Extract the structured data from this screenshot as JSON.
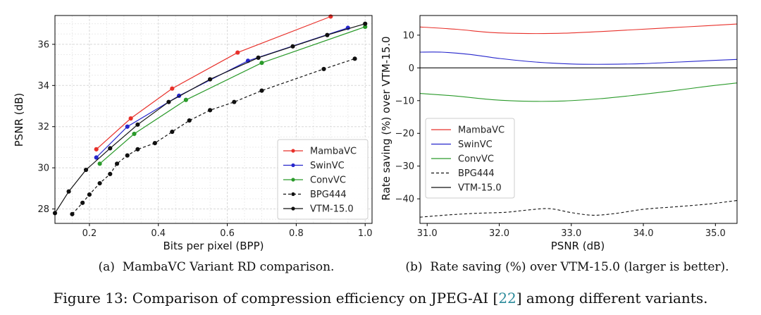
{
  "chart_data": [
    {
      "type": "line",
      "xlabel": "Bits per pixel (BPP)",
      "ylabel": "PSNR (dB)",
      "xlim": [
        0.1,
        1.02
      ],
      "ylim": [
        27.3,
        37.4
      ],
      "xticks": [
        0.2,
        0.4,
        0.6,
        0.8,
        1.0
      ],
      "xtick_labels": [
        "0.2",
        "0.4",
        "0.6",
        "0.8",
        "1.0"
      ],
      "yticks": [
        28,
        30,
        32,
        34,
        36
      ],
      "ytick_labels": [
        "28",
        "30",
        "32",
        "34",
        "36"
      ],
      "grid": true,
      "legend_position": "bottom-right",
      "caption": "(a)  MambaVC Variant RD comparison.",
      "series": [
        {
          "name": "MambaVC",
          "color": "#e8302a",
          "dash": "solid",
          "x": [
            0.22,
            0.32,
            0.44,
            0.63,
            0.9
          ],
          "y": [
            30.9,
            32.4,
            33.85,
            35.6,
            37.35
          ]
        },
        {
          "name": "SwinVC",
          "color": "#2626cc",
          "dash": "solid",
          "x": [
            0.22,
            0.31,
            0.46,
            0.66,
            0.95
          ],
          "y": [
            30.5,
            32.0,
            33.5,
            35.2,
            36.8
          ]
        },
        {
          "name": "ConvVC",
          "color": "#2a9a2a",
          "dash": "solid",
          "x": [
            0.23,
            0.33,
            0.48,
            0.7,
            1.0
          ],
          "y": [
            30.2,
            31.65,
            33.3,
            35.1,
            36.85
          ]
        },
        {
          "name": "BPG444",
          "color": "#111111",
          "dash": "dashed",
          "x": [
            0.15,
            0.18,
            0.2,
            0.23,
            0.26,
            0.28,
            0.31,
            0.34,
            0.39,
            0.44,
            0.49,
            0.55,
            0.62,
            0.7,
            0.88,
            0.97
          ],
          "y": [
            27.75,
            28.3,
            28.7,
            29.25,
            29.7,
            30.2,
            30.6,
            30.9,
            31.2,
            31.75,
            32.3,
            32.8,
            33.2,
            33.75,
            34.8,
            35.3
          ]
        },
        {
          "name": "VTM-15.0",
          "color": "#111111",
          "dash": "solid",
          "x": [
            0.1,
            0.14,
            0.19,
            0.26,
            0.34,
            0.43,
            0.55,
            0.69,
            0.79,
            0.89,
            1.0
          ],
          "y": [
            27.8,
            28.85,
            29.9,
            30.95,
            32.1,
            33.2,
            34.3,
            35.35,
            35.9,
            36.45,
            37.0
          ]
        }
      ]
    },
    {
      "type": "line",
      "xlabel": "PSNR (dB)",
      "ylabel": "Rate saving (%) over VTM-15.0",
      "xlim": [
        30.9,
        35.3
      ],
      "ylim": [
        -47.5,
        16
      ],
      "xticks": [
        31.0,
        32.0,
        33.0,
        34.0,
        35.0
      ],
      "xtick_labels": [
        "31.0",
        "32.0",
        "33.0",
        "34.0",
        "35.0"
      ],
      "yticks": [
        10,
        0,
        -10,
        -20,
        -30,
        -40
      ],
      "ytick_labels": [
        "10",
        "0",
        "−10",
        "−20",
        "−30",
        "−40"
      ],
      "grid": false,
      "legend_position": "center-left",
      "caption": "(b)  Rate saving (%) over VTM-15.0 (larger is better).",
      "series": [
        {
          "name": "MambaVC",
          "color": "#e8302a",
          "dash": "solid",
          "x": [
            30.9,
            31.4,
            31.9,
            32.4,
            32.9,
            33.4,
            33.9,
            34.4,
            34.9,
            35.3
          ],
          "y": [
            12.5,
            11.8,
            10.8,
            10.5,
            10.6,
            11.1,
            11.7,
            12.3,
            12.9,
            13.4
          ]
        },
        {
          "name": "SwinVC",
          "color": "#2626cc",
          "dash": "solid",
          "x": [
            30.9,
            31.2,
            31.6,
            32.0,
            32.5,
            33.0,
            33.5,
            34.0,
            34.5,
            35.0,
            35.3
          ],
          "y": [
            4.8,
            4.8,
            4.1,
            2.9,
            1.8,
            1.2,
            1.1,
            1.3,
            1.8,
            2.3,
            2.6
          ]
        },
        {
          "name": "ConvVC",
          "color": "#2a9a2a",
          "dash": "solid",
          "x": [
            30.9,
            31.4,
            31.9,
            32.4,
            32.9,
            33.4,
            33.9,
            34.4,
            34.9,
            35.3
          ],
          "y": [
            -7.8,
            -8.6,
            -9.7,
            -10.2,
            -10.1,
            -9.4,
            -8.3,
            -7.0,
            -5.6,
            -4.6
          ]
        },
        {
          "name": "BPG444",
          "color": "#111111",
          "dash": "dashed",
          "x": [
            30.9,
            31.3,
            31.7,
            32.1,
            32.4,
            32.7,
            33.0,
            33.3,
            33.6,
            34.0,
            34.4,
            34.9,
            35.3
          ],
          "y": [
            -45.6,
            -44.9,
            -44.4,
            -44.1,
            -43.4,
            -43.0,
            -44.2,
            -45.0,
            -44.5,
            -43.2,
            -42.5,
            -41.6,
            -40.5
          ]
        },
        {
          "name": "VTM-15.0",
          "color": "#111111",
          "dash": "solid",
          "x": [
            30.9,
            35.3
          ],
          "y": [
            0,
            0
          ]
        }
      ]
    }
  ],
  "figure_caption": {
    "prefix": "Figure 13: Comparison of compression efficiency on JPEG-AI [",
    "ref": "22",
    "suffix": "] among different variants."
  }
}
